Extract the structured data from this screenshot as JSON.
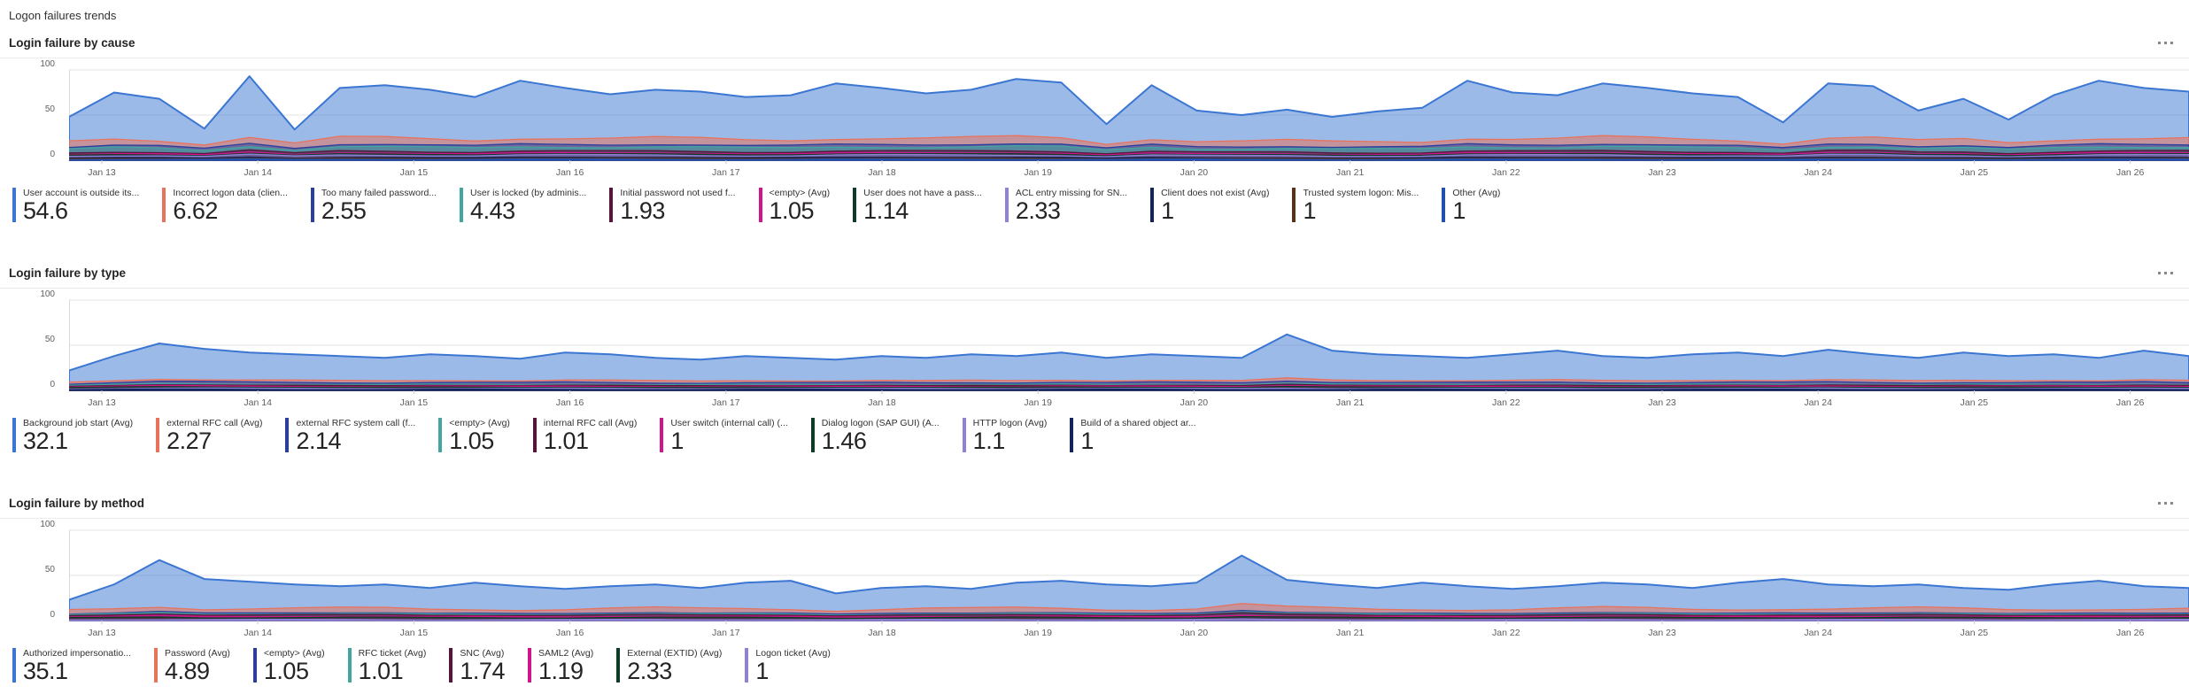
{
  "page": {
    "title": "Logon failures trends"
  },
  "icons": {
    "more_menu": "ellipsis-horizontal-icon"
  },
  "axis_color": "#605e5c",
  "grid_color": "#e3e3e3",
  "chart_data": [
    {
      "type": "area",
      "stacked": true,
      "title": "Login failure by cause",
      "legend_position": "bottom",
      "ylim": [
        0,
        100
      ],
      "y_ticks": [
        "100",
        "50",
        "0"
      ],
      "x_labels": [
        "Jan 13",
        "Jan 14",
        "Jan 15",
        "Jan 16",
        "Jan 17",
        "Jan 18",
        "Jan 19",
        "Jan 20",
        "Jan 21",
        "Jan 22",
        "Jan 23",
        "Jan 24",
        "Jan 25",
        "Jan 26"
      ],
      "totals": [
        48,
        75,
        68,
        35,
        93,
        34,
        80,
        83,
        78,
        70,
        88,
        80,
        73,
        78,
        76,
        70,
        72,
        85,
        80,
        74,
        78,
        90,
        86,
        40,
        83,
        55,
        50,
        56,
        48,
        54,
        58,
        88,
        75,
        72,
        85,
        80,
        74,
        70,
        42,
        85,
        82,
        55,
        68,
        45,
        72,
        88,
        80,
        76
      ],
      "series": [
        {
          "name": "User account is outside its...",
          "value": "54.6",
          "color": "#3a76d2"
        },
        {
          "name": "Incorrect logon data (clien...",
          "value": "6.62",
          "color": "#e8735d"
        },
        {
          "name": "Too many failed password...",
          "value": "2.55",
          "color": "#2a3f9d"
        },
        {
          "name": "User is locked (by adminis...",
          "value": "4.43",
          "color": "#41a5a0"
        },
        {
          "name": "Initial password not used f...",
          "value": "1.93",
          "color": "#561438"
        },
        {
          "name": "<empty> (Avg)",
          "value": "1.05",
          "color": "#d0148c"
        },
        {
          "name": "User does not have a pass...",
          "value": "1.14",
          "color": "#0d3b25"
        },
        {
          "name": "ACL entry missing for SN...",
          "value": "2.33",
          "color": "#8d82d8"
        },
        {
          "name": "Client does not exist (Avg)",
          "value": "1",
          "color": "#12245c"
        },
        {
          "name": "Trusted system logon: Mis...",
          "value": "1",
          "color": "#5a3118"
        },
        {
          "name": "Other (Avg)",
          "value": "1",
          "color": "#2050b0"
        }
      ]
    },
    {
      "type": "area",
      "stacked": true,
      "title": "Login failure by type",
      "legend_position": "bottom",
      "ylim": [
        0,
        100
      ],
      "y_ticks": [
        "100",
        "50",
        "0"
      ],
      "x_labels": [
        "Jan 13",
        "Jan 14",
        "Jan 15",
        "Jan 16",
        "Jan 17",
        "Jan 18",
        "Jan 19",
        "Jan 20",
        "Jan 21",
        "Jan 22",
        "Jan 23",
        "Jan 24",
        "Jan 25",
        "Jan 26"
      ],
      "totals": [
        22,
        38,
        52,
        46,
        42,
        40,
        38,
        36,
        40,
        38,
        35,
        42,
        40,
        36,
        34,
        38,
        36,
        34,
        38,
        36,
        40,
        38,
        42,
        36,
        40,
        38,
        36,
        62,
        44,
        40,
        38,
        36,
        40,
        44,
        38,
        36,
        40,
        42,
        38,
        45,
        40,
        36,
        42,
        38,
        40,
        36,
        44,
        38
      ],
      "series": [
        {
          "name": "Background job start (Avg)",
          "value": "32.1",
          "color": "#3a76d2"
        },
        {
          "name": "external RFC call (Avg)",
          "value": "2.27",
          "color": "#e8735d"
        },
        {
          "name": "external RFC system call (f...",
          "value": "2.14",
          "color": "#2a3f9d"
        },
        {
          "name": "<empty> (Avg)",
          "value": "1.05",
          "color": "#41a5a0"
        },
        {
          "name": "internal RFC call (Avg)",
          "value": "1.01",
          "color": "#561438"
        },
        {
          "name": "User switch (internal call) (...",
          "value": "1",
          "color": "#d0148c"
        },
        {
          "name": "Dialog logon (SAP GUI) (A...",
          "value": "1.46",
          "color": "#0d3b25"
        },
        {
          "name": "HTTP logon (Avg)",
          "value": "1.1",
          "color": "#8d82d8"
        },
        {
          "name": "Build of a shared object ar...",
          "value": "1",
          "color": "#12245c"
        }
      ]
    },
    {
      "type": "area",
      "stacked": true,
      "title": "Login failure by method",
      "legend_position": "bottom",
      "ylim": [
        0,
        100
      ],
      "y_ticks": [
        "100",
        "50",
        "0"
      ],
      "x_labels": [
        "Jan 13",
        "Jan 14",
        "Jan 15",
        "Jan 16",
        "Jan 17",
        "Jan 18",
        "Jan 19",
        "Jan 20",
        "Jan 21",
        "Jan 22",
        "Jan 23",
        "Jan 24",
        "Jan 25",
        "Jan 26"
      ],
      "totals": [
        23,
        40,
        67,
        46,
        43,
        40,
        38,
        40,
        36,
        42,
        38,
        35,
        38,
        40,
        36,
        42,
        44,
        30,
        36,
        38,
        35,
        42,
        44,
        40,
        38,
        42,
        72,
        45,
        40,
        36,
        42,
        38,
        35,
        38,
        42,
        40,
        36,
        42,
        46,
        40,
        38,
        40,
        36,
        34,
        40,
        44,
        38,
        36
      ],
      "series": [
        {
          "name": "Authorized impersonatio...",
          "value": "35.1",
          "color": "#3a76d2"
        },
        {
          "name": "Password (Avg)",
          "value": "4.89",
          "color": "#e8735d"
        },
        {
          "name": "<empty> (Avg)",
          "value": "1.05",
          "color": "#2a3f9d"
        },
        {
          "name": "RFC ticket (Avg)",
          "value": "1.01",
          "color": "#41a5a0"
        },
        {
          "name": "SNC (Avg)",
          "value": "1.74",
          "color": "#561438"
        },
        {
          "name": "SAML2 (Avg)",
          "value": "1.19",
          "color": "#d0148c"
        },
        {
          "name": "External (EXTID) (Avg)",
          "value": "2.33",
          "color": "#0d3b25"
        },
        {
          "name": "Logon ticket (Avg)",
          "value": "1",
          "color": "#8d82d8"
        }
      ]
    }
  ]
}
